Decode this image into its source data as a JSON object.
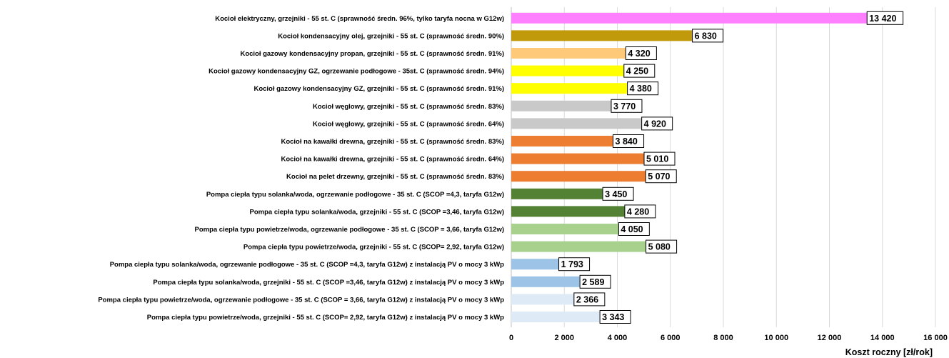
{
  "chart_data": {
    "type": "bar",
    "orientation": "horizontal",
    "categories": [
      "Kocioł elektryczny, grzejniki - 55 st. C (sprawność średn. 96%, tylko taryfa nocna w G12w)",
      "Kocioł kondensacyjny olej, grzejniki - 55 st. C (sprawność średn. 90%)",
      "Kocioł gazowy kondensacyjny propan, grzejniki - 55 st. C (sprawność średn. 91%)",
      "Kocioł gazowy kondensacyjny GZ, ogrzewanie podłogowe - 35st. C (sprawność średn. 94%)",
      "Kocioł gazowy kondensacyjny GZ, grzejniki - 55 st. C (sprawność średn. 91%)",
      "Kocioł węglowy, grzejniki - 55 st. C (sprawność średn. 83%)",
      "Kocioł węglowy, grzejniki - 55 st. C (sprawność średn. 64%)",
      "Kocioł na kawałki drewna, grzejniki - 55 st. C (sprawność średn. 83%)",
      "Kocioł na kawałki drewna, grzejniki - 55 st. C (sprawność średn. 64%)",
      "Kocioł na pelet drzewny, grzejniki - 55 st. C (sprawność średn. 83%)",
      "Pompa ciepła typu solanka/woda, ogrzewanie podłogowe - 35 st. C (SCOP =4,3, taryfa G12w)",
      "Pompa ciepła typu solanka/woda, grzejniki - 55 st. C (SCOP =3,46, taryfa G12w)",
      "Pompa ciepła typu powietrze/woda, ogrzewanie podłogowe - 35 st. C (SCOP = 3,66, taryfa G12w)",
      "Pompa ciepła typu powietrze/woda, grzejniki - 55 st. C (SCOP= 2,92, taryfa G12w)",
      "Pompa ciepła typu solanka/woda, ogrzewanie podłogowe - 35 st. C (SCOP =4,3, taryfa G12w) z instalacją PV o mocy 3 kWp",
      "Pompa ciepła typu solanka/woda, grzejniki - 55 st. C (SCOP =3,46, taryfa G12w) z instalacją PV o mocy 3 kWp",
      "Pompa ciepła typu powietrze/woda, ogrzewanie podłogowe - 35 st. C (SCOP = 3,66, taryfa G12w) z instalacją PV o mocy 3 kWp",
      "Pompa ciepła typu powietrze/woda, grzejniki - 55 st. C (SCOP= 2,92, taryfa G12w) z instalacją PV o mocy 3 kWp"
    ],
    "values": [
      13420,
      6830,
      4320,
      4250,
      4380,
      3770,
      4920,
      3840,
      5010,
      5070,
      3450,
      4280,
      4050,
      5080,
      1793,
      2589,
      2366,
      3343
    ],
    "value_labels": [
      "13 420",
      "6 830",
      "4 320",
      "4 250",
      "4 380",
      "3 770",
      "4 920",
      "3 840",
      "5 010",
      "5 070",
      "3 450",
      "4 280",
      "4 050",
      "5 080",
      "1 793",
      "2 589",
      "2 366",
      "3 343"
    ],
    "colors": [
      "#ff80ff",
      "#c09a0a",
      "#ffc97a",
      "#ffff00",
      "#ffff00",
      "#c9c9c9",
      "#c9c9c9",
      "#ed7d31",
      "#ed7d31",
      "#ed7d31",
      "#548235",
      "#548235",
      "#a9d18e",
      "#a9d18e",
      "#9dc3e6",
      "#9dc3e6",
      "#deebf7",
      "#deebf7"
    ],
    "xlim": [
      0,
      16000
    ],
    "x_ticks": [
      0,
      2000,
      4000,
      6000,
      8000,
      10000,
      12000,
      14000,
      16000
    ],
    "x_tick_labels": [
      "0",
      "2 000",
      "4 000",
      "6 000",
      "8 000",
      "10 000",
      "12 000",
      "14 000",
      "16 000"
    ],
    "xlabel": "Koszt roczny [zł/rok]",
    "grid": true
  }
}
